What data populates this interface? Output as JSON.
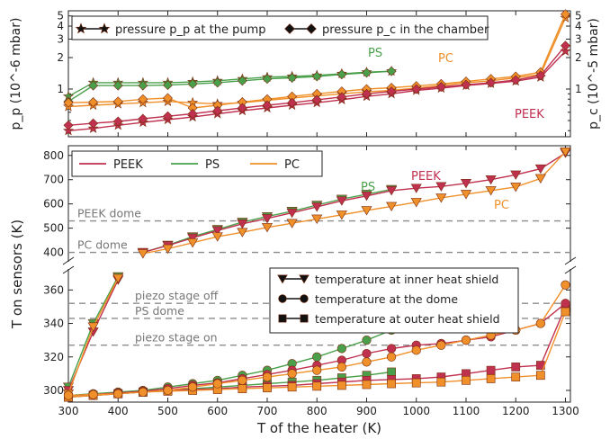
{
  "chart_data": {
    "type": "line",
    "colors": {
      "PEEK": "#c0304f",
      "PS": "#4aa04a",
      "PC": "#f0902a",
      "marker_stroke": "#7a2d12",
      "ref_line": "#8c8c8c"
    },
    "x_ticks": [
      300,
      400,
      500,
      600,
      700,
      800,
      900,
      1000,
      1100,
      1200,
      1300
    ],
    "xlim": [
      300,
      1310
    ],
    "xlabel": "T of the heater (K)",
    "pressure_panel": {
      "ylabel_left": "p_p (10^-6 mbar)",
      "ylabel_right": "p_c (10^-5 mbar)",
      "yscale": "log",
      "ylim": [
        0.35,
        5.6
      ],
      "y_ticks": [
        "1",
        "2",
        "3",
        "4",
        "5"
      ],
      "legend": [
        "pressure p_p at the pump",
        "pressure p_c in the chamber"
      ],
      "labels": {
        "PS": "PS",
        "PC": "PC",
        "PEEK": "PEEK"
      },
      "x": [
        300,
        350,
        400,
        450,
        500,
        550,
        600,
        650,
        700,
        750,
        800,
        850,
        900,
        950,
        1000,
        1050,
        1100,
        1150,
        1200,
        1250,
        1300
      ],
      "series": [
        {
          "material": "PS",
          "marker": "star",
          "values": [
            0.85,
            1.15,
            1.15,
            1.15,
            1.15,
            1.17,
            1.2,
            1.25,
            1.3,
            1.32,
            1.35,
            1.4,
            1.45,
            1.48
          ]
        },
        {
          "material": "PS",
          "marker": "diamond",
          "values": [
            0.76,
            1.08,
            1.08,
            1.08,
            1.09,
            1.12,
            1.15,
            1.2,
            1.25,
            1.28,
            1.32,
            1.38,
            1.43,
            1.48
          ]
        },
        {
          "material": "PC",
          "marker": "star",
          "values": [
            0.68,
            0.7,
            0.72,
            0.74,
            0.76,
            0.74,
            0.72,
            0.74,
            0.78,
            0.82,
            0.86,
            0.9,
            0.94,
            0.97,
            1.02,
            1.08,
            1.15,
            1.2,
            1.28,
            1.38,
            4.8
          ]
        },
        {
          "material": "PC",
          "marker": "diamond",
          "values": [
            0.74,
            0.75,
            0.76,
            0.8,
            0.82,
            0.66,
            0.7,
            0.75,
            0.8,
            0.85,
            0.9,
            0.95,
            1.0,
            1.03,
            1.07,
            1.12,
            1.18,
            1.25,
            1.32,
            1.45,
            5.2
          ]
        },
        {
          "material": "PEEK",
          "marker": "star",
          "values": [
            0.4,
            0.42,
            0.45,
            0.48,
            0.51,
            0.54,
            0.58,
            0.62,
            0.66,
            0.7,
            0.74,
            0.79,
            0.85,
            0.9,
            0.97,
            1.02,
            1.08,
            1.13,
            1.19,
            1.3,
            2.3
          ]
        },
        {
          "material": "PEEK",
          "marker": "diamond",
          "values": [
            0.45,
            0.47,
            0.49,
            0.52,
            0.55,
            0.58,
            0.62,
            0.66,
            0.7,
            0.74,
            0.79,
            0.84,
            0.9,
            0.95,
            1.0,
            1.05,
            1.1,
            1.15,
            1.22,
            1.35,
            2.6
          ]
        }
      ]
    },
    "temperature_panel": {
      "ylabel": "T on sensors (K)",
      "upper_ylim": [
        365,
        840
      ],
      "upper_ticks": [
        400,
        500,
        600,
        700,
        800
      ],
      "lower_ylim": [
        293,
        372
      ],
      "lower_ticks": [
        300,
        320,
        340,
        360
      ],
      "legend_materials": [
        "PEEK",
        "PS",
        "PC"
      ],
      "legend_markers": [
        "temperature at inner heat shield",
        "temperature at the dome",
        "temperature at outer heat shield"
      ],
      "reference_lines": [
        {
          "label": "PEEK dome",
          "y": 530
        },
        {
          "label": "PC dome",
          "y": 400
        },
        {
          "label": "piezo stage off",
          "y": 352
        },
        {
          "label": "PS dome",
          "y": 343
        },
        {
          "label": "piezo stage on",
          "y": 327
        }
      ],
      "labels": {
        "PS": "PS",
        "PEEK": "PEEK",
        "PC": "PC"
      },
      "early_inner": [
        {
          "material": "PS",
          "x": [
            300,
            350,
            400
          ],
          "values": [
            302,
            340,
            368
          ]
        },
        {
          "material": "PEEK",
          "x": [
            300,
            350,
            400
          ],
          "values": [
            300,
            335,
            366
          ]
        },
        {
          "material": "PC",
          "x": [
            300,
            350,
            400
          ],
          "values": [
            298,
            338,
            367
          ]
        }
      ],
      "inner": [
        {
          "material": "PS",
          "x": [
            450,
            500,
            550,
            600,
            650,
            700,
            750,
            800,
            850,
            900,
            950
          ],
          "values": [
            400,
            430,
            465,
            495,
            525,
            548,
            570,
            595,
            620,
            640,
            660
          ]
        },
        {
          "material": "PEEK",
          "x": [
            450,
            500,
            550,
            600,
            650,
            700,
            750,
            800,
            850,
            900,
            950,
            1000,
            1050,
            1100,
            1150,
            1200,
            1250,
            1300
          ],
          "values": [
            400,
            428,
            460,
            490,
            518,
            540,
            563,
            588,
            613,
            633,
            655,
            665,
            672,
            685,
            700,
            720,
            745,
            810
          ]
        },
        {
          "material": "PC",
          "x": [
            450,
            500,
            550,
            600,
            650,
            700,
            750,
            800,
            850,
            900,
            950,
            1000,
            1050,
            1100,
            1150,
            1200,
            1250,
            1300
          ],
          "values": [
            395,
            415,
            440,
            465,
            483,
            503,
            520,
            538,
            555,
            573,
            590,
            607,
            625,
            640,
            655,
            670,
            705,
            815
          ]
        }
      ],
      "dome": [
        {
          "material": "PS",
          "x": [
            300,
            350,
            400,
            450,
            500,
            550,
            600,
            650,
            700,
            750,
            800,
            850,
            900,
            950
          ],
          "values": [
            297,
            298,
            299,
            300,
            302,
            304,
            306,
            309,
            312,
            316,
            320,
            325,
            330,
            336
          ]
        },
        {
          "material": "PEEK",
          "x": [
            300,
            350,
            400,
            450,
            500,
            550,
            600,
            650,
            700,
            750,
            800,
            850,
            900,
            950,
            1000,
            1050,
            1100,
            1150,
            1200,
            1250,
            1300
          ],
          "values": [
            297,
            297.5,
            298.5,
            299.5,
            301,
            303,
            304.5,
            307,
            309.5,
            312,
            315,
            318,
            322,
            325,
            327,
            328,
            330,
            332,
            336,
            340,
            352
          ]
        },
        {
          "material": "PC",
          "x": [
            300,
            350,
            400,
            450,
            500,
            550,
            600,
            650,
            700,
            750,
            800,
            850,
            900,
            950,
            1000,
            1050,
            1100,
            1150,
            1200,
            1250,
            1300
          ],
          "values": [
            297,
            297.5,
            298,
            299,
            300,
            302,
            304,
            306,
            308,
            310,
            312,
            314,
            317,
            320,
            324,
            327,
            330,
            333,
            336,
            340,
            363
          ]
        }
      ],
      "outer": [
        {
          "material": "PS",
          "x": [
            300,
            350,
            400,
            450,
            500,
            550,
            600,
            650,
            700,
            750,
            800,
            850,
            900,
            950
          ],
          "values": [
            296,
            297,
            298,
            299,
            300,
            301,
            302,
            303,
            304,
            305,
            306,
            307.5,
            309,
            311
          ]
        },
        {
          "material": "PEEK",
          "x": [
            300,
            350,
            400,
            450,
            500,
            550,
            600,
            650,
            700,
            750,
            800,
            850,
            900,
            950,
            1000,
            1050,
            1100,
            1150,
            1200,
            1250,
            1300
          ],
          "values": [
            296,
            297,
            298,
            299,
            300,
            300.5,
            301,
            302,
            302.5,
            303,
            304,
            305,
            306,
            306.5,
            307,
            308,
            310,
            312,
            314,
            315,
            350
          ]
        },
        {
          "material": "PC",
          "x": [
            300,
            350,
            400,
            450,
            500,
            550,
            600,
            650,
            700,
            750,
            800,
            850,
            900,
            950,
            1000,
            1050,
            1100,
            1150,
            1200,
            1250,
            1300
          ],
          "values": [
            296,
            297,
            298,
            299,
            299.5,
            300,
            300.5,
            301,
            301.5,
            302,
            302.5,
            303,
            303.5,
            304,
            304.5,
            305,
            306,
            307,
            308,
            309,
            347
          ]
        }
      ]
    }
  }
}
